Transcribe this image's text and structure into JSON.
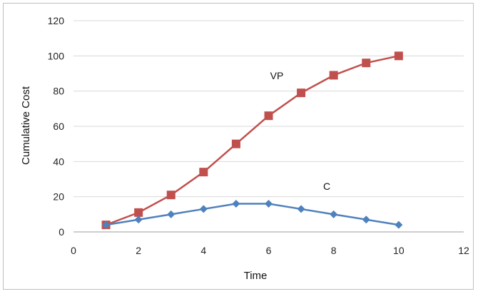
{
  "chart_data": {
    "type": "line",
    "title": "",
    "xlabel": "Time",
    "ylabel": "Cumulative Cost",
    "xlim": [
      0,
      12
    ],
    "ylim": [
      0,
      120
    ],
    "xticks": [
      "0",
      "2",
      "4",
      "6",
      "8",
      "10",
      "12"
    ],
    "yticks": [
      "0",
      "20",
      "40",
      "60",
      "80",
      "100",
      "120"
    ],
    "grid": "horizontal",
    "legend": "none",
    "series": [
      {
        "name": "VP",
        "color": "#c0504d",
        "marker": "square",
        "x": [
          1,
          2,
          3,
          4,
          5,
          6,
          7,
          8,
          9,
          10
        ],
        "y": [
          4,
          11,
          21,
          34,
          50,
          66,
          79,
          89,
          96,
          100
        ]
      },
      {
        "name": "C",
        "color": "#4f81bd",
        "marker": "diamond",
        "x": [
          1,
          2,
          3,
          4,
          5,
          6,
          7,
          8,
          9,
          10
        ],
        "y": [
          4,
          7,
          10,
          13,
          16,
          16,
          13,
          10,
          7,
          4
        ]
      }
    ]
  }
}
